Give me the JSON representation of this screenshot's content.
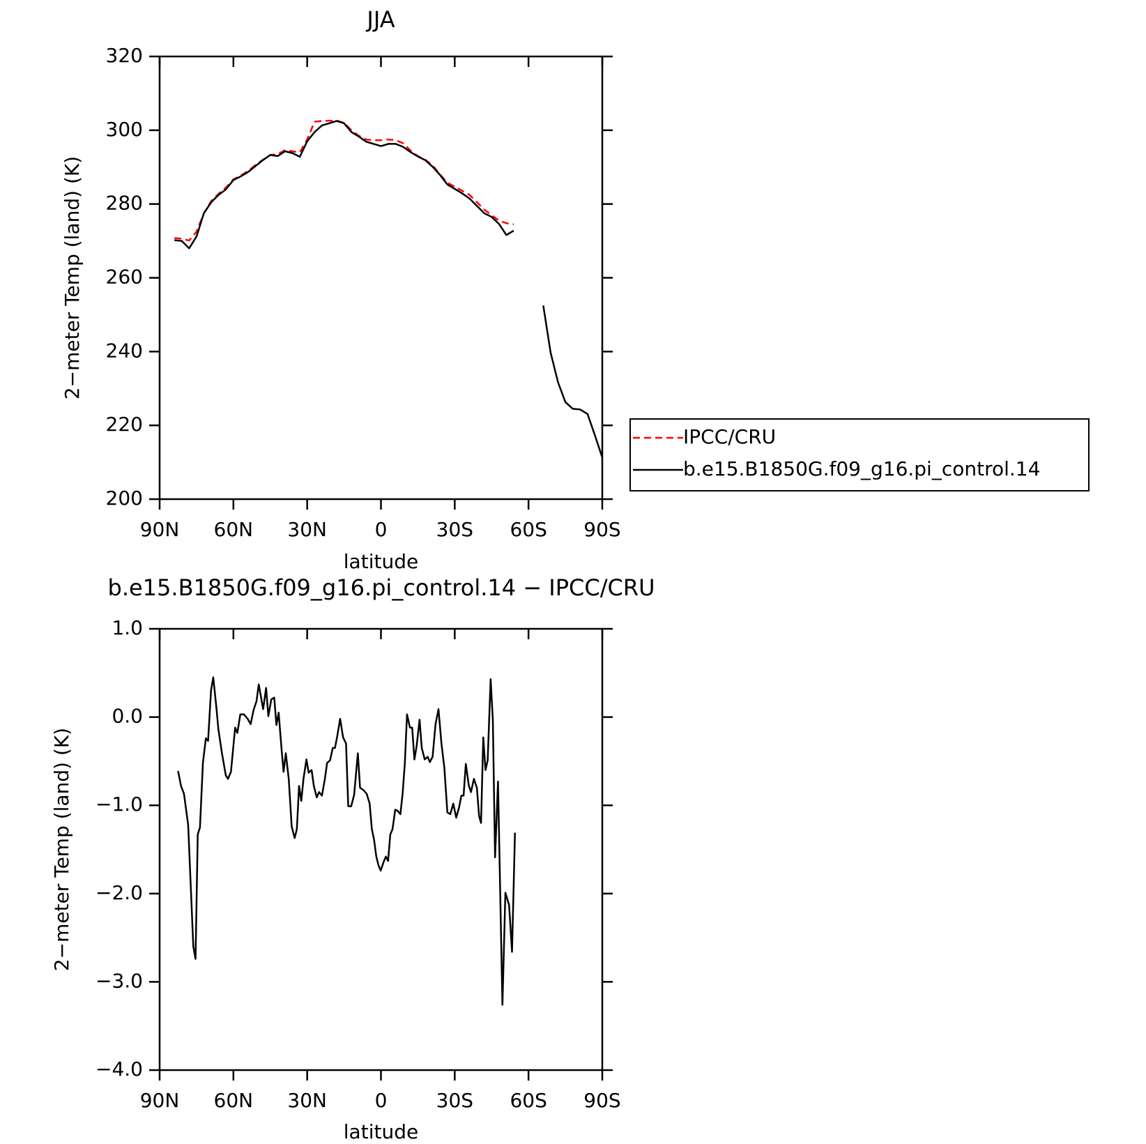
{
  "chart_data": [
    {
      "type": "line",
      "title": "JJA",
      "xlabel": "latitude",
      "ylabel": "2−meter Temp (land) (K)",
      "xlim": [
        90,
        -90
      ],
      "xticks": [
        {
          "value": 90,
          "label": "90N"
        },
        {
          "value": 60,
          "label": "60N"
        },
        {
          "value": 30,
          "label": "30N"
        },
        0,
        {
          "value": -30,
          "label": "30S"
        },
        {
          "value": -60,
          "label": "60S"
        },
        {
          "value": -90,
          "label": "90S"
        }
      ],
      "ylim": [
        200,
        320
      ],
      "yticks": [
        200,
        220,
        240,
        260,
        280,
        300,
        320
      ],
      "legend": "right",
      "x": [
        84,
        81,
        78,
        75,
        72,
        69,
        66,
        63,
        60,
        57,
        54,
        51,
        48,
        45,
        42,
        39,
        36,
        33,
        30,
        27,
        24,
        21,
        18,
        15,
        12,
        9,
        6,
        3,
        0,
        -3,
        -6,
        -9,
        -12,
        -15,
        -18,
        -21,
        -24,
        -27,
        -30,
        -33,
        -36,
        -39,
        -42,
        -45,
        -48,
        -51,
        -54,
        -57,
        -60,
        -63,
        -66,
        -69,
        -72,
        -75,
        -78,
        -81,
        -84,
        -87,
        -90
      ],
      "series": [
        {
          "name": "IPCC/CRU",
          "color": "#ff0000",
          "dashed": true,
          "values": [
            270.8,
            270.6,
            270.1,
            272.5,
            277.5,
            280.8,
            282.8,
            284.5,
            286.7,
            287.7,
            289,
            290.6,
            292,
            293.3,
            293.5,
            294.6,
            294.3,
            294,
            297.5,
            302.3,
            302.5,
            302.6,
            302.6,
            302,
            300,
            298.5,
            297.5,
            297.3,
            297.3,
            297.5,
            297.3,
            296.5,
            294.5,
            293,
            292,
            290.5,
            288,
            285.8,
            284.7,
            283.6,
            282.5,
            280.5,
            278.5,
            277,
            275.5,
            274.8,
            274.5,
            null,
            null,
            null,
            null,
            null,
            null,
            null,
            null,
            null,
            null,
            null,
            null
          ]
        },
        {
          "name": "b.e15.B1850G.f09_g16.pi_control.14",
          "color": "#000000",
          "dashed": false,
          "values": [
            270.2,
            270,
            268,
            271.2,
            277.5,
            280.5,
            282.5,
            284,
            286.5,
            287.5,
            288.7,
            290.3,
            291.9,
            293.3,
            293,
            294.3,
            293.8,
            292.8,
            297,
            299.5,
            301.3,
            301.9,
            302.5,
            301.9,
            299.5,
            298.3,
            296.9,
            296.3,
            295.7,
            296.3,
            296.3,
            295.5,
            294.1,
            292.9,
            291.9,
            290.1,
            287.9,
            285.3,
            284.1,
            282.9,
            281.5,
            279.5,
            277.5,
            276.5,
            274.6,
            271.6,
            272.8,
            null,
            null,
            null,
            252.5,
            239.7,
            231.7,
            226.3,
            224.5,
            224.3,
            223.1,
            217.3,
            211.3
          ]
        }
      ]
    },
    {
      "type": "line",
      "title": "b.e15.B1850G.f09_g16.pi_control.14 − IPCC/CRU",
      "xlabel": "latitude",
      "ylabel": "2−meter Temp (land) (K)",
      "xlim": [
        90,
        -90
      ],
      "xticks": [
        {
          "value": 90,
          "label": "90N"
        },
        {
          "value": 60,
          "label": "60N"
        },
        {
          "value": 30,
          "label": "30N"
        },
        0,
        {
          "value": -30,
          "label": "30S"
        },
        {
          "value": -60,
          "label": "60S"
        },
        {
          "value": -90,
          "label": "90S"
        }
      ],
      "ylim": [
        -4,
        1
      ],
      "yticks": [
        {
          "value": -4,
          "label": "−4.0"
        },
        {
          "value": -3,
          "label": "−3.0"
        },
        {
          "value": -2,
          "label": "−2.0"
        },
        {
          "value": -1,
          "label": "−1.0"
        },
        {
          "value": 0,
          "label": "0.0"
        },
        {
          "value": 1,
          "label": "1.0"
        }
      ],
      "x": [
        82.5,
        81.3,
        80.1,
        78.4,
        76.3,
        75.4,
        74.5,
        73.6,
        72.4,
        71.2,
        70.3,
        69.1,
        68.2,
        67.0,
        66.1,
        64.6,
        63.1,
        62.2,
        61.0,
        59.3,
        58.4,
        57.2,
        55.7,
        54.2,
        53.0,
        51.8,
        50.6,
        49.7,
        47.9,
        46.7,
        45.8,
        44.6,
        43.4,
        42.5,
        41.6,
        40.4,
        39.6,
        38.7,
        37.5,
        36.3,
        35.1,
        34.2,
        33.3,
        32.4,
        31.5,
        30.3,
        29.4,
        28.2,
        27.3,
        26.1,
        25.2,
        24.0,
        22.8,
        21.9,
        20.7,
        19.6,
        18.7,
        17.8,
        16.6,
        15.4,
        14.2,
        13.3,
        12.1,
        10.9,
        9.4,
        8.5,
        7.0,
        5.8,
        4.6,
        3.7,
        2.8,
        1.9,
        1.0,
        0.1,
        -1.1,
        -2.0,
        -2.9,
        -3.8,
        -4.7,
        -5.8,
        -6.7,
        -7.9,
        -8.8,
        -9.7,
        -10.6,
        -11.8,
        -12.7,
        -13.6,
        -14.5,
        -15.7,
        -16.6,
        -17.8,
        -19.0,
        -19.9,
        -21.0,
        -22.2,
        -23.4,
        -24.6,
        -25.8,
        -27.0,
        -28.2,
        -29.4,
        -30.6,
        -31.8,
        -32.7,
        -33.6,
        -34.5,
        -35.7,
        -36.6,
        -37.8,
        -39.0,
        -39.9,
        -40.7,
        -41.6,
        -42.5,
        -43.4,
        -44.6,
        -45.5,
        -46.4,
        -47.6,
        -49.4,
        -50.6,
        -52.1,
        -53.3,
        -54.5
      ],
      "series": [
        {
          "name": "b.e15.B1850G.f09_g16.pi_control.14 − IPCC/CRU",
          "color": "#000000",
          "dashed": false,
          "values": [
            -0.61,
            -0.78,
            -0.87,
            -1.22,
            -2.6,
            -2.74,
            -1.33,
            -1.25,
            -0.52,
            -0.24,
            -0.27,
            0.3,
            0.45,
            0.13,
            -0.14,
            -0.42,
            -0.66,
            -0.7,
            -0.62,
            -0.12,
            -0.18,
            0.03,
            0.03,
            -0.02,
            -0.08,
            0.08,
            0.18,
            0.37,
            0.09,
            0.33,
            0.01,
            0.2,
            0.22,
            -0.09,
            0.05,
            -0.37,
            -0.62,
            -0.41,
            -0.7,
            -1.24,
            -1.37,
            -1.27,
            -0.78,
            -0.95,
            -0.7,
            -0.48,
            -0.63,
            -0.6,
            -0.78,
            -0.91,
            -0.85,
            -0.89,
            -0.7,
            -0.52,
            -0.49,
            -0.35,
            -0.35,
            -0.22,
            -0.02,
            -0.23,
            -0.3,
            -1.01,
            -1.01,
            -0.88,
            -0.41,
            -0.8,
            -0.83,
            -0.87,
            -0.98,
            -1.27,
            -1.39,
            -1.58,
            -1.68,
            -1.74,
            -1.64,
            -1.58,
            -1.63,
            -1.33,
            -1.27,
            -1.05,
            -1.06,
            -1.1,
            -0.87,
            -0.53,
            0.03,
            -0.12,
            -0.12,
            -0.48,
            -0.33,
            -0.03,
            -0.35,
            -0.48,
            -0.45,
            -0.51,
            -0.45,
            -0.08,
            0.09,
            -0.3,
            -0.58,
            -1.08,
            -1.1,
            -0.98,
            -1.14,
            -1.02,
            -0.89,
            -0.89,
            -0.53,
            -0.77,
            -0.85,
            -0.7,
            -0.8,
            -1.12,
            -1.2,
            -0.23,
            -0.6,
            -0.49,
            0.43,
            -0.03,
            -1.59,
            -0.73,
            -3.26,
            -1.99,
            -2.13,
            -2.66,
            -1.31
          ]
        }
      ]
    }
  ]
}
